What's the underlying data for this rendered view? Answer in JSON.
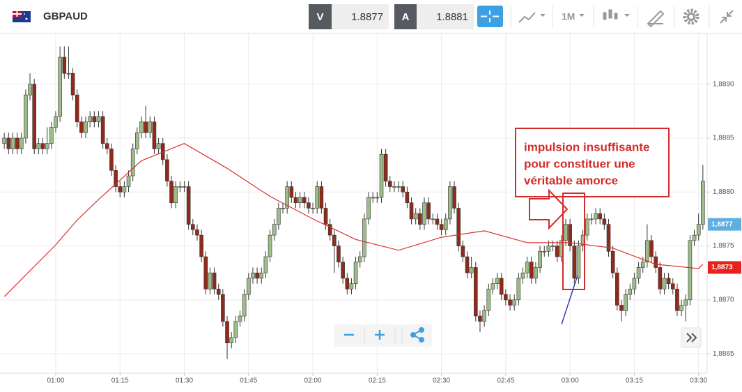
{
  "header": {
    "symbol": "GBPAUD",
    "bid_label": "V",
    "bid": "1.8877",
    "ask_label": "A",
    "ask": "1.8881",
    "timeframe": "1M"
  },
  "chart_data": {
    "type": "candlestick",
    "up_color": "#9dbd88",
    "down_color": "#8f2b1d",
    "grid": true,
    "xlim": [
      "00:47",
      "03:32"
    ],
    "xticks": [
      "01:00",
      "01:15",
      "01:30",
      "01:45",
      "02:00",
      "02:15",
      "02:30",
      "02:45",
      "03:00",
      "03:15",
      "03:30"
    ],
    "ylim": [
      1.88632,
      1.88947
    ],
    "yticks": [
      {
        "value": 1.8865,
        "label": "1,8865"
      },
      {
        "value": 1.887,
        "label": "1,8870"
      },
      {
        "value": 1.8875,
        "label": "1,8875"
      },
      {
        "value": 1.888,
        "label": "1,8880"
      },
      {
        "value": 1.8885,
        "label": "1,8885"
      },
      {
        "value": 1.889,
        "label": "1,8890"
      }
    ],
    "x": [
      "00:48",
      "00:49",
      "00:50",
      "00:51",
      "00:52",
      "00:53",
      "00:54",
      "00:55",
      "00:56",
      "00:57",
      "00:58",
      "00:59",
      "01:00",
      "01:01",
      "01:02",
      "01:03",
      "01:04",
      "01:05",
      "01:06",
      "01:07",
      "01:08",
      "01:09",
      "01:10",
      "01:11",
      "01:12",
      "01:13",
      "01:14",
      "01:15",
      "01:16",
      "01:17",
      "01:18",
      "01:19",
      "01:20",
      "01:21",
      "01:22",
      "01:23",
      "01:24",
      "01:25",
      "01:26",
      "01:27",
      "01:28",
      "01:29",
      "01:30",
      "01:31",
      "01:32",
      "01:33",
      "01:34",
      "01:35",
      "01:36",
      "01:37",
      "01:38",
      "01:39",
      "01:40",
      "01:41",
      "01:42",
      "01:43",
      "01:44",
      "01:45",
      "01:46",
      "01:47",
      "01:48",
      "01:49",
      "01:50",
      "01:51",
      "01:52",
      "01:53",
      "01:54",
      "01:55",
      "01:56",
      "01:57",
      "01:58",
      "01:59",
      "02:00",
      "02:01",
      "02:02",
      "02:03",
      "02:04",
      "02:05",
      "02:06",
      "02:07",
      "02:08",
      "02:09",
      "02:10",
      "02:11",
      "02:12",
      "02:13",
      "02:14",
      "02:15",
      "02:16",
      "02:17",
      "02:18",
      "02:19",
      "02:20",
      "02:21",
      "02:22",
      "02:23",
      "02:24",
      "02:25",
      "02:26",
      "02:27",
      "02:28",
      "02:29",
      "02:30",
      "02:31",
      "02:32",
      "02:33",
      "02:34",
      "02:35",
      "02:36",
      "02:37",
      "02:38",
      "02:39",
      "02:40",
      "02:41",
      "02:42",
      "02:43",
      "02:44",
      "02:45",
      "02:46",
      "02:47",
      "02:48",
      "02:49",
      "02:50",
      "02:51",
      "02:52",
      "02:53",
      "02:54",
      "02:55",
      "02:56",
      "02:57",
      "02:58",
      "02:59",
      "03:00",
      "03:01",
      "03:02",
      "03:03",
      "03:04",
      "03:05",
      "03:06",
      "03:07",
      "03:08",
      "03:09",
      "03:10",
      "03:11",
      "03:12",
      "03:13",
      "03:14",
      "03:15",
      "03:16",
      "03:17",
      "03:18",
      "03:19",
      "03:20",
      "03:21",
      "03:22",
      "03:23",
      "03:24",
      "03:25",
      "03:26",
      "03:27",
      "03:28",
      "03:29",
      "03:30",
      "03:31"
    ],
    "candles": [
      [
        1.88845,
        1.88855,
        1.8884,
        1.8885
      ],
      [
        1.8885,
        1.88855,
        1.88835,
        1.8884
      ],
      [
        1.8884,
        1.88855,
        1.88835,
        1.8885
      ],
      [
        1.8885,
        1.88855,
        1.88835,
        1.8884
      ],
      [
        1.8884,
        1.88855,
        1.88835,
        1.8885
      ],
      [
        1.8885,
        1.88895,
        1.88845,
        1.8889
      ],
      [
        1.8889,
        1.8891,
        1.88885,
        1.889
      ],
      [
        1.889,
        1.88905,
        1.88835,
        1.8884
      ],
      [
        1.8884,
        1.8885,
        1.88835,
        1.88845
      ],
      [
        1.88845,
        1.8885,
        1.88835,
        1.8884
      ],
      [
        1.8884,
        1.8886,
        1.88835,
        1.88845
      ],
      [
        1.88845,
        1.88865,
        1.8884,
        1.8886
      ],
      [
        1.8886,
        1.88875,
        1.88855,
        1.8887
      ],
      [
        1.8887,
        1.88935,
        1.88865,
        1.88925
      ],
      [
        1.88925,
        1.88935,
        1.88905,
        1.8891
      ],
      [
        1.8891,
        1.88935,
        1.88905,
        1.8891
      ],
      [
        1.8891,
        1.88915,
        1.88885,
        1.8889
      ],
      [
        1.8889,
        1.88895,
        1.8886,
        1.88865
      ],
      [
        1.88865,
        1.8887,
        1.8885,
        1.88855
      ],
      [
        1.88855,
        1.8887,
        1.8885,
        1.88865
      ],
      [
        1.88865,
        1.88875,
        1.8886,
        1.8887
      ],
      [
        1.8887,
        1.88875,
        1.8886,
        1.88865
      ],
      [
        1.88865,
        1.88875,
        1.8886,
        1.8887
      ],
      [
        1.8887,
        1.88875,
        1.8884,
        1.88845
      ],
      [
        1.88845,
        1.8885,
        1.88835,
        1.8884
      ],
      [
        1.8884,
        1.88845,
        1.88815,
        1.8882
      ],
      [
        1.8882,
        1.88825,
        1.888,
        1.88805
      ],
      [
        1.88805,
        1.8881,
        1.88795,
        1.888
      ],
      [
        1.888,
        1.8881,
        1.88795,
        1.88805
      ],
      [
        1.88805,
        1.8882,
        1.888,
        1.88815
      ],
      [
        1.88815,
        1.88845,
        1.8881,
        1.8884
      ],
      [
        1.8884,
        1.8886,
        1.88835,
        1.88855
      ],
      [
        1.88855,
        1.8887,
        1.8885,
        1.88865
      ],
      [
        1.88865,
        1.8888,
        1.8885,
        1.88855
      ],
      [
        1.88855,
        1.8887,
        1.8885,
        1.88865
      ],
      [
        1.88865,
        1.8887,
        1.88835,
        1.8884
      ],
      [
        1.8884,
        1.8885,
        1.88835,
        1.88845
      ],
      [
        1.88845,
        1.8885,
        1.88825,
        1.8883
      ],
      [
        1.8883,
        1.88835,
        1.88805,
        1.8881
      ],
      [
        1.8881,
        1.88815,
        1.88785,
        1.8879
      ],
      [
        1.8879,
        1.8881,
        1.88785,
        1.88805
      ],
      [
        1.88805,
        1.8881,
        1.888,
        1.88805
      ],
      [
        1.88805,
        1.8881,
        1.888,
        1.88805
      ],
      [
        1.88805,
        1.8881,
        1.88765,
        1.8877
      ],
      [
        1.8877,
        1.88775,
        1.8876,
        1.88765
      ],
      [
        1.88765,
        1.8877,
        1.88755,
        1.8876
      ],
      [
        1.8876,
        1.88765,
        1.88735,
        1.8874
      ],
      [
        1.8874,
        1.88745,
        1.88705,
        1.8871
      ],
      [
        1.8871,
        1.8873,
        1.88705,
        1.88725
      ],
      [
        1.88725,
        1.8873,
        1.88705,
        1.8871
      ],
      [
        1.8871,
        1.88715,
        1.887,
        1.88705
      ],
      [
        1.88705,
        1.8871,
        1.88675,
        1.8868
      ],
      [
        1.8868,
        1.88685,
        1.88645,
        1.8866
      ],
      [
        1.8866,
        1.8867,
        1.88655,
        1.88665
      ],
      [
        1.88665,
        1.88685,
        1.8866,
        1.8868
      ],
      [
        1.8868,
        1.8869,
        1.88675,
        1.88685
      ],
      [
        1.88685,
        1.8871,
        1.8868,
        1.88705
      ],
      [
        1.88705,
        1.88725,
        1.887,
        1.8872
      ],
      [
        1.8872,
        1.8873,
        1.88715,
        1.88725
      ],
      [
        1.88725,
        1.8873,
        1.88715,
        1.8872
      ],
      [
        1.8872,
        1.8873,
        1.88715,
        1.88725
      ],
      [
        1.88725,
        1.88745,
        1.8872,
        1.8874
      ],
      [
        1.8874,
        1.88765,
        1.88735,
        1.8876
      ],
      [
        1.8876,
        1.88775,
        1.88755,
        1.8877
      ],
      [
        1.8877,
        1.8879,
        1.88765,
        1.88785
      ],
      [
        1.88785,
        1.8879,
        1.8878,
        1.88785
      ],
      [
        1.88785,
        1.8881,
        1.8878,
        1.88805
      ],
      [
        1.88805,
        1.8881,
        1.8879,
        1.88795
      ],
      [
        1.88795,
        1.888,
        1.88785,
        1.8879
      ],
      [
        1.8879,
        1.888,
        1.88785,
        1.88795
      ],
      [
        1.88795,
        1.888,
        1.88785,
        1.8879
      ],
      [
        1.8879,
        1.88795,
        1.8878,
        1.88785
      ],
      [
        1.88785,
        1.8879,
        1.8878,
        1.88785
      ],
      [
        1.88785,
        1.8881,
        1.8878,
        1.88805
      ],
      [
        1.88805,
        1.8881,
        1.8878,
        1.88785
      ],
      [
        1.88785,
        1.8879,
        1.88765,
        1.8877
      ],
      [
        1.8877,
        1.88775,
        1.88755,
        1.8876
      ],
      [
        1.8876,
        1.88765,
        1.88725,
        1.8875
      ],
      [
        1.8875,
        1.88755,
        1.8873,
        1.88735
      ],
      [
        1.88735,
        1.8874,
        1.88715,
        1.8872
      ],
      [
        1.8872,
        1.88725,
        1.88705,
        1.8871
      ],
      [
        1.8871,
        1.8872,
        1.88705,
        1.88715
      ],
      [
        1.88715,
        1.8874,
        1.8871,
        1.88735
      ],
      [
        1.88735,
        1.88745,
        1.8873,
        1.8874
      ],
      [
        1.8874,
        1.8878,
        1.88735,
        1.88775
      ],
      [
        1.88775,
        1.888,
        1.8877,
        1.88795
      ],
      [
        1.88795,
        1.888,
        1.8879,
        1.88795
      ],
      [
        1.88795,
        1.888,
        1.8879,
        1.88795
      ],
      [
        1.88795,
        1.8884,
        1.8879,
        1.88835
      ],
      [
        1.88835,
        1.8884,
        1.88805,
        1.8881
      ],
      [
        1.8881,
        1.88815,
        1.888,
        1.88805
      ],
      [
        1.88805,
        1.8881,
        1.888,
        1.88805
      ],
      [
        1.88805,
        1.8881,
        1.888,
        1.88805
      ],
      [
        1.88805,
        1.8881,
        1.88795,
        1.888
      ],
      [
        1.888,
        1.88805,
        1.88785,
        1.8879
      ],
      [
        1.8879,
        1.88795,
        1.8877,
        1.88775
      ],
      [
        1.88775,
        1.88785,
        1.8877,
        1.8878
      ],
      [
        1.8878,
        1.88785,
        1.88765,
        1.8877
      ],
      [
        1.8877,
        1.88795,
        1.88765,
        1.8879
      ],
      [
        1.8879,
        1.88795,
        1.8877,
        1.88775
      ],
      [
        1.88775,
        1.8878,
        1.8877,
        1.88775
      ],
      [
        1.88775,
        1.8878,
        1.88765,
        1.8877
      ],
      [
        1.8877,
        1.88775,
        1.8876,
        1.88765
      ],
      [
        1.88765,
        1.8878,
        1.8876,
        1.88775
      ],
      [
        1.88775,
        1.8881,
        1.8877,
        1.88805
      ],
      [
        1.88805,
        1.8881,
        1.8878,
        1.88785
      ],
      [
        1.88785,
        1.8879,
        1.88745,
        1.8875
      ],
      [
        1.8875,
        1.88755,
        1.88735,
        1.8874
      ],
      [
        1.8874,
        1.88745,
        1.8872,
        1.88725
      ],
      [
        1.88725,
        1.8874,
        1.8872,
        1.8873
      ],
      [
        1.8873,
        1.88735,
        1.8868,
        1.88685
      ],
      [
        1.88685,
        1.8869,
        1.8867,
        1.8868
      ],
      [
        1.8868,
        1.88695,
        1.88675,
        1.8869
      ],
      [
        1.8869,
        1.88715,
        1.88685,
        1.8871
      ],
      [
        1.8871,
        1.8872,
        1.88705,
        1.88715
      ],
      [
        1.88715,
        1.88725,
        1.8871,
        1.8872
      ],
      [
        1.8872,
        1.88725,
        1.887,
        1.88705
      ],
      [
        1.88705,
        1.8871,
        1.88695,
        1.887
      ],
      [
        1.887,
        1.88705,
        1.8869,
        1.88695
      ],
      [
        1.88695,
        1.88705,
        1.8869,
        1.887
      ],
      [
        1.887,
        1.88725,
        1.88695,
        1.8872
      ],
      [
        1.8872,
        1.8873,
        1.88715,
        1.88725
      ],
      [
        1.88725,
        1.8874,
        1.8872,
        1.88735
      ],
      [
        1.88735,
        1.8874,
        1.88715,
        1.8872
      ],
      [
        1.8872,
        1.88735,
        1.88715,
        1.8873
      ],
      [
        1.8873,
        1.8875,
        1.88725,
        1.88745
      ],
      [
        1.88745,
        1.8875,
        1.8874,
        1.88745
      ],
      [
        1.88745,
        1.88755,
        1.8874,
        1.8875
      ],
      [
        1.8875,
        1.88755,
        1.88745,
        1.8875
      ],
      [
        1.8875,
        1.88755,
        1.88735,
        1.8874
      ],
      [
        1.8874,
        1.8876,
        1.88735,
        1.88755
      ],
      [
        1.88755,
        1.88775,
        1.8875,
        1.8877
      ],
      [
        1.8877,
        1.88775,
        1.88745,
        1.8875
      ],
      [
        1.8875,
        1.88755,
        1.88715,
        1.8872
      ],
      [
        1.8872,
        1.88755,
        1.88715,
        1.8875
      ],
      [
        1.8875,
        1.88765,
        1.88745,
        1.8876
      ],
      [
        1.8876,
        1.8878,
        1.88755,
        1.88775
      ],
      [
        1.88775,
        1.8878,
        1.8877,
        1.88775
      ],
      [
        1.88775,
        1.88785,
        1.8877,
        1.8878
      ],
      [
        1.8878,
        1.88785,
        1.8877,
        1.88775
      ],
      [
        1.88775,
        1.8878,
        1.88765,
        1.8877
      ],
      [
        1.8877,
        1.88775,
        1.8874,
        1.88745
      ],
      [
        1.88745,
        1.8875,
        1.8872,
        1.88725
      ],
      [
        1.88725,
        1.8873,
        1.8869,
        1.88695
      ],
      [
        1.88695,
        1.887,
        1.8868,
        1.8869
      ],
      [
        1.8869,
        1.8871,
        1.88685,
        1.88705
      ],
      [
        1.88705,
        1.88715,
        1.887,
        1.8871
      ],
      [
        1.8871,
        1.88725,
        1.88705,
        1.8872
      ],
      [
        1.8872,
        1.88735,
        1.88715,
        1.8873
      ],
      [
        1.8873,
        1.8874,
        1.88725,
        1.88735
      ],
      [
        1.88735,
        1.8877,
        1.8873,
        1.88755
      ],
      [
        1.88755,
        1.8876,
        1.88735,
        1.8874
      ],
      [
        1.8874,
        1.88745,
        1.88725,
        1.8873
      ],
      [
        1.8873,
        1.88735,
        1.88705,
        1.8871
      ],
      [
        1.8871,
        1.88725,
        1.88705,
        1.8872
      ],
      [
        1.8872,
        1.88725,
        1.8871,
        1.88715
      ],
      [
        1.88715,
        1.8872,
        1.88705,
        1.8871
      ],
      [
        1.8871,
        1.88715,
        1.88685,
        1.8869
      ],
      [
        1.8869,
        1.887,
        1.88685,
        1.88695
      ],
      [
        1.88695,
        1.88705,
        1.8868,
        1.887
      ],
      [
        1.887,
        1.8876,
        1.88695,
        1.88755
      ],
      [
        1.88755,
        1.88765,
        1.8875,
        1.8876
      ],
      [
        1.8876,
        1.8878,
        1.88755,
        1.8877
      ],
      [
        1.8877,
        1.88825,
        1.88765,
        1.8881
      ]
    ],
    "ma": {
      "color": "#d9302c",
      "x": [
        "00:48",
        "01:00",
        "01:05",
        "01:10",
        "01:20",
        "01:30",
        "01:40",
        "01:50",
        "02:00",
        "02:10",
        "02:20",
        "02:30",
        "02:40",
        "02:50",
        "03:00",
        "03:10",
        "03:20",
        "03:30",
        "03:31"
      ],
      "values": [
        1.88703,
        1.88751,
        1.88774,
        1.88793,
        1.88829,
        1.88845,
        1.88822,
        1.88796,
        1.88775,
        1.88756,
        1.88746,
        1.88758,
        1.88764,
        1.88753,
        1.88753,
        1.88748,
        1.88733,
        1.88729,
        1.88733
      ]
    },
    "price_labels": [
      {
        "value": 1.8877,
        "label": "1,8877",
        "color": "#5eaee2"
      },
      {
        "value": 1.8873,
        "label": "1,8873",
        "color": "#e8231b"
      }
    ],
    "annotation": [
      "impulsion insuffisante",
      "pour constituer une",
      "véritable amorce"
    ]
  }
}
